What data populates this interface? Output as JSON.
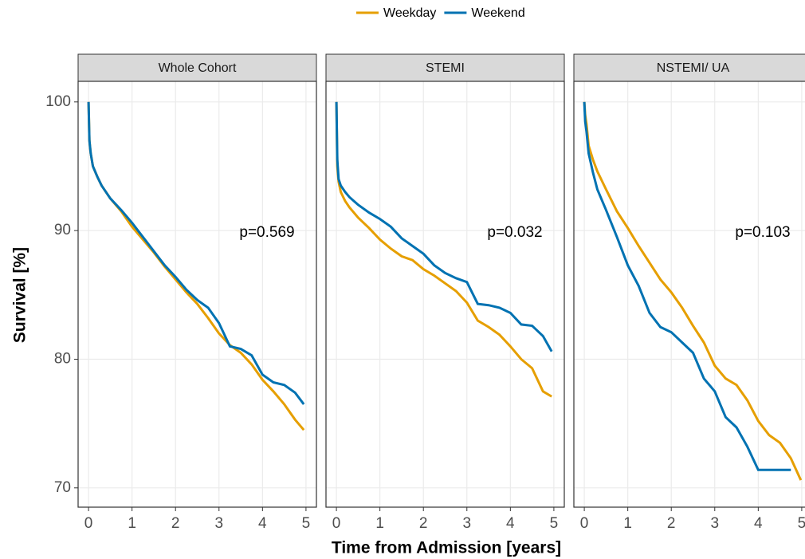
{
  "x_label": "Time from Admission [years]",
  "y_label": "Survival [%]",
  "chart_data": [
    {
      "type": "line",
      "title": "Whole Cohort",
      "annotation": "p=0.569",
      "x": [
        0,
        0.02,
        0.05,
        0.1,
        0.2,
        0.3,
        0.5,
        0.75,
        1,
        1.25,
        1.5,
        1.75,
        2,
        2.25,
        2.5,
        2.75,
        3,
        3.25,
        3.5,
        3.75,
        4,
        4.25,
        4.5,
        4.75,
        4.95
      ],
      "series": [
        {
          "name": "Weekday",
          "color": "#e69f00",
          "values": [
            100,
            97,
            96,
            95,
            94.2,
            93.5,
            92.5,
            91.5,
            90.3,
            89.3,
            88.3,
            87.2,
            86.2,
            85.2,
            84.3,
            83.2,
            82,
            81.1,
            80.5,
            79.6,
            78.4,
            77.5,
            76.5,
            75.3,
            74.5
          ]
        },
        {
          "name": "Weekend",
          "color": "#0072b2",
          "values": [
            100,
            97,
            96,
            95,
            94.2,
            93.5,
            92.5,
            91.6,
            90.6,
            89.5,
            88.4,
            87.3,
            86.4,
            85.4,
            84.6,
            84,
            82.8,
            81,
            80.8,
            80.3,
            78.8,
            78.2,
            78,
            77.4,
            76.5
          ]
        }
      ],
      "xlim": [
        -0.24,
        5.24
      ],
      "ylim": [
        68.5,
        101.6
      ],
      "xticks": [
        0,
        1,
        2,
        3,
        4,
        5
      ],
      "yticks": [
        70,
        80,
        90,
        100
      ],
      "grid": true
    },
    {
      "type": "line",
      "title": "STEMI",
      "annotation": "p=0.032",
      "x": [
        0,
        0.02,
        0.05,
        0.1,
        0.2,
        0.3,
        0.5,
        0.75,
        1,
        1.25,
        1.5,
        1.75,
        2,
        2.25,
        2.5,
        2.75,
        3,
        3.25,
        3.5,
        3.75,
        4,
        4.25,
        4.5,
        4.75,
        4.95
      ],
      "series": [
        {
          "name": "Weekday",
          "color": "#e69f00",
          "values": [
            100,
            95,
            93.8,
            93,
            92.3,
            91.8,
            91,
            90.2,
            89.3,
            88.6,
            88,
            87.7,
            87,
            86.5,
            85.9,
            85.3,
            84.4,
            83,
            82.5,
            81.9,
            81,
            80,
            79.3,
            77.5,
            77.1
          ]
        },
        {
          "name": "Weekend",
          "color": "#0072b2",
          "values": [
            100,
            95.5,
            94,
            93.5,
            93,
            92.6,
            92,
            91.4,
            90.9,
            90.3,
            89.4,
            88.8,
            88.2,
            87.3,
            86.7,
            86.3,
            86,
            84.3,
            84.2,
            84,
            83.6,
            82.7,
            82.6,
            81.8,
            80.6
          ]
        }
      ],
      "xlim": [
        -0.24,
        5.24
      ],
      "ylim": [
        68.5,
        101.6
      ],
      "xticks": [
        0,
        1,
        2,
        3,
        4,
        5
      ],
      "yticks": [
        70,
        80,
        90,
        100
      ],
      "grid": true
    },
    {
      "type": "line",
      "title": "NSTEMI/ UA",
      "annotation": "p=0.103",
      "x": [
        0,
        0.02,
        0.05,
        0.1,
        0.2,
        0.3,
        0.5,
        0.75,
        1,
        1.25,
        1.5,
        1.75,
        2,
        2.25,
        2.5,
        2.75,
        3,
        3.25,
        3.5,
        3.75,
        4,
        4.25,
        4.5,
        4.75,
        4.98
      ],
      "series": [
        {
          "name": "Weekday",
          "color": "#e69f00",
          "values": [
            100,
            99,
            98.3,
            96.6,
            95.5,
            94.6,
            93.2,
            91.5,
            90.2,
            88.8,
            87.5,
            86.2,
            85.2,
            84,
            82.6,
            81.3,
            79.5,
            78.5,
            78,
            76.8,
            75.2,
            74.1,
            73.5,
            72.3,
            70.6
          ]
        },
        {
          "name": "Weekend",
          "color": "#0072b2",
          "values": [
            100,
            98.5,
            97.7,
            96,
            94.5,
            93.2,
            91.6,
            89.5,
            87.3,
            85.7,
            83.6,
            82.5,
            82.1,
            81.3,
            80.5,
            78.5,
            77.5,
            75.5,
            74.7,
            73.2,
            71.4,
            71.4,
            71.4,
            71.4,
            null
          ]
        }
      ],
      "xlim": [
        -0.24,
        5.24
      ],
      "ylim": [
        68.5,
        101.6
      ],
      "xticks": [
        0,
        1,
        2,
        3,
        4,
        5
      ],
      "yticks": [
        70,
        80,
        90,
        100
      ],
      "grid": true
    }
  ]
}
